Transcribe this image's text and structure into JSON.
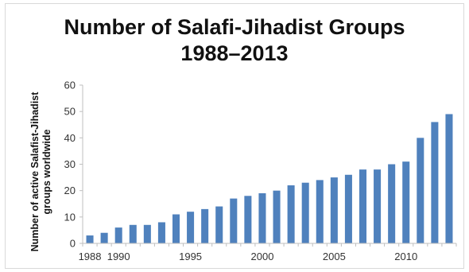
{
  "chart_data": {
    "type": "bar",
    "title": "Number of Salafi-Jihadist Groups",
    "subtitle": "1988–2013",
    "xlabel": "",
    "ylabel": "Number of active Salafist-Jihadist groups worldwide",
    "ylabel_lines": [
      "Number of active Salafist-Jihadist",
      "groups worldwide"
    ],
    "ylim": [
      0,
      60
    ],
    "yticks": [
      0,
      10,
      20,
      30,
      40,
      50,
      60
    ],
    "categories": [
      1988,
      1989,
      1990,
      1991,
      1992,
      1993,
      1994,
      1995,
      1996,
      1997,
      1998,
      1999,
      2000,
      2001,
      2002,
      2003,
      2004,
      2005,
      2006,
      2007,
      2008,
      2009,
      2010,
      2011,
      2012,
      2013
    ],
    "values": [
      3,
      4,
      6,
      7,
      7,
      8,
      11,
      12,
      13,
      14,
      17,
      18,
      19,
      20,
      22,
      23,
      24,
      25,
      26,
      28,
      28,
      30,
      31,
      40,
      46,
      49
    ],
    "xtick_labels": [
      "1988",
      "1990",
      "1995",
      "2000",
      "2005",
      "2010"
    ],
    "xtick_years": [
      1988,
      1990,
      1995,
      2000,
      2005,
      2010
    ],
    "grid": false,
    "legend": "none",
    "bar_color": "#4f81bd"
  }
}
